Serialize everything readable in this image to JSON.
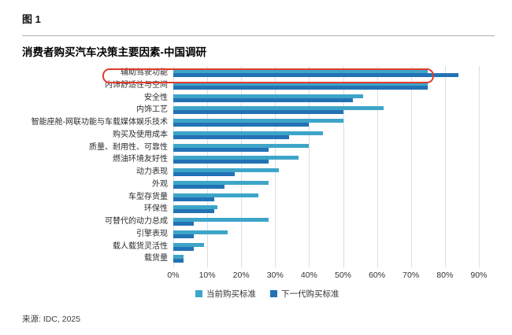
{
  "header": {
    "figure_label": "图 1",
    "title": "消费者购买汽车决策主要因素-中国调研"
  },
  "source": "来源: IDC, 2025",
  "chart_data": {
    "type": "bar",
    "orientation": "horizontal",
    "title": "消费者购买汽车决策主要因素-中国调研",
    "categories": [
      "辅助驾驶功能",
      "内饰舒适性与空间",
      "安全性",
      "内饰工艺",
      "智能座舱-网联功能与车载媒体娱乐技术",
      "购买及使用成本",
      "质量、耐用性、可靠性",
      "燃油环境友好性",
      "动力表现",
      "外观",
      "车型存货量",
      "环保性",
      "可替代的动力总成",
      "引擎表现",
      "载人载货灵活性",
      "载货量"
    ],
    "series": [
      {
        "name": "当前购买标准",
        "color": "#3da5c8",
        "values": [
          75,
          75,
          56,
          62,
          50,
          44,
          40,
          37,
          31,
          28,
          25,
          13,
          28,
          16,
          9,
          3
        ]
      },
      {
        "name": "下一代购买标准",
        "color": "#2272b5",
        "values": [
          84,
          75,
          53,
          50,
          40,
          34,
          28,
          28,
          18,
          15,
          12,
          12,
          6,
          6,
          6,
          3
        ]
      }
    ],
    "xlim": [
      0,
      90
    ],
    "xticks": [
      "0%",
      "10%",
      "20%",
      "30%",
      "40%",
      "50%",
      "60%",
      "70%",
      "80%",
      "90%"
    ],
    "grid": true,
    "legend_position": "bottom",
    "highlight": {
      "category": "辅助驾驶功能",
      "color": "#e23b2e"
    }
  }
}
